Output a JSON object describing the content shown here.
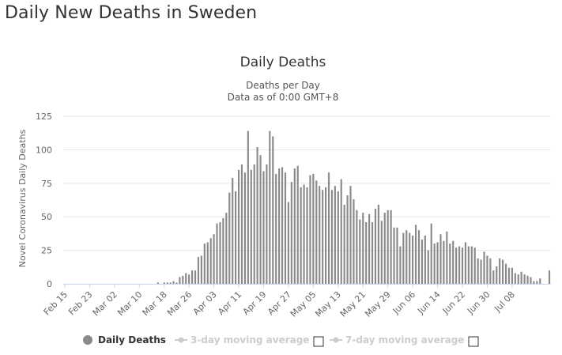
{
  "page": {
    "title": "Daily New Deaths in Sweden"
  },
  "chart_data": {
    "type": "bar",
    "title": "Daily Deaths",
    "subtitle_line1": "Deaths per Day",
    "subtitle_line2": "Data as of 0:00 GMT+8",
    "ylabel": "Novel Coronavirus Daily Deaths",
    "xlabel": "",
    "ylim": [
      0,
      125
    ],
    "yticks": [
      0,
      25,
      50,
      75,
      100,
      125
    ],
    "grid": true,
    "legend_placement": "bottom-center",
    "start_date": "2020-02-15",
    "xtick_labels": [
      "Feb 15",
      "Feb 23",
      "Mar 02",
      "Mar 10",
      "Mar 18",
      "Mar 26",
      "Apr 03",
      "Apr 11",
      "Apr 19",
      "Apr 27",
      "May 05",
      "May 13",
      "May 21",
      "May 29",
      "Jun 06",
      "Jun 14",
      "Jun 22",
      "Jun 30",
      "Jul 08"
    ],
    "series": [
      {
        "name": "Daily Deaths",
        "color": "#8a8a8a",
        "values": [
          0,
          0,
          0,
          0,
          0,
          0,
          0,
          0,
          0,
          0,
          0,
          0,
          0,
          0,
          0,
          0,
          0,
          0,
          0,
          0,
          0,
          0,
          0,
          0,
          0,
          0,
          0,
          0,
          0,
          0,
          1,
          0,
          1,
          1,
          1,
          2,
          1,
          5,
          6,
          8,
          7,
          10,
          10,
          20,
          21,
          30,
          31,
          34,
          37,
          45,
          46,
          49,
          53,
          68,
          79,
          69,
          85,
          89,
          83,
          114,
          85,
          89,
          102,
          96,
          84,
          89,
          114,
          110,
          82,
          86,
          87,
          83,
          61,
          76,
          86,
          88,
          72,
          74,
          72,
          81,
          82,
          77,
          73,
          70,
          72,
          83,
          70,
          73,
          69,
          78,
          59,
          66,
          73,
          63,
          55,
          48,
          53,
          46,
          52,
          46,
          56,
          59,
          47,
          53,
          55,
          55,
          42,
          42,
          28,
          38,
          40,
          38,
          36,
          44,
          40,
          33,
          36,
          25,
          45,
          30,
          31,
          37,
          32,
          39,
          30,
          32,
          27,
          28,
          27,
          31,
          28,
          28,
          27,
          19,
          18,
          24,
          21,
          19,
          10,
          13,
          19,
          18,
          15,
          12,
          12,
          8,
          7,
          9,
          7,
          6,
          5,
          2,
          2,
          4,
          0,
          0,
          10
        ]
      },
      {
        "name": "3-day moving average",
        "color": "#cccccc",
        "visible": false
      },
      {
        "name": "7-day moving average",
        "color": "#cccccc",
        "visible": false
      }
    ]
  }
}
